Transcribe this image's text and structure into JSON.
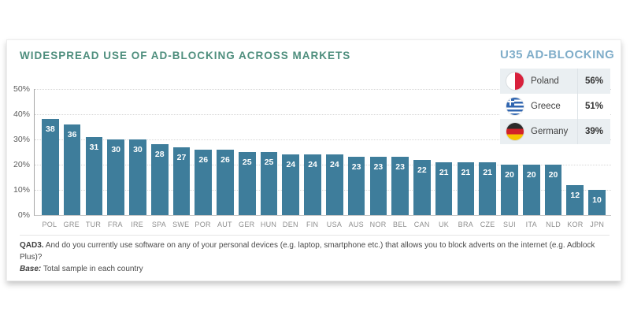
{
  "colors": {
    "bar": "#3E7D9B",
    "chart_title": "#4E8E7D",
    "panel_title": "#7FADC9",
    "legend_row_alt": "#EAEFF2"
  },
  "chart_data": {
    "type": "bar",
    "title": "WIDESPREAD USE OF AD-BLOCKING ACROSS MARKETS",
    "categories": [
      "POL",
      "GRE",
      "TUR",
      "FRA",
      "IRE",
      "SPA",
      "SWE",
      "POR",
      "AUT",
      "GER",
      "HUN",
      "DEN",
      "FIN",
      "USA",
      "AUS",
      "NOR",
      "BEL",
      "CAN",
      "UK",
      "BRA",
      "CZE",
      "SUI",
      "ITA",
      "NLD",
      "KOR",
      "JPN"
    ],
    "values": [
      38,
      36,
      31,
      30,
      30,
      28,
      27,
      26,
      26,
      25,
      25,
      24,
      24,
      24,
      23,
      23,
      23,
      22,
      21,
      21,
      21,
      20,
      20,
      20,
      12,
      10
    ],
    "ytick_labels": [
      "50%",
      "40%",
      "30%",
      "20%",
      "10%",
      "0%"
    ],
    "ylim": [
      0,
      50
    ],
    "xlabel": "",
    "ylabel": "",
    "grid": "dotted-horizontal",
    "legend_position": "top-right-overlay"
  },
  "panel": {
    "title": "U35 AD-BLOCKING",
    "rows": [
      {
        "country": "Poland",
        "value": "56%",
        "flag": "poland-flag",
        "flag_class": "flag-poland"
      },
      {
        "country": "Greece",
        "value": "51%",
        "flag": "greece-flag",
        "flag_class": "flag-greece"
      },
      {
        "country": "Germany",
        "value": "39%",
        "flag": "germany-flag",
        "flag_class": "flag-germany"
      }
    ]
  },
  "footnote": {
    "q_label": "QAD3.",
    "q_text": " And do you currently use software on any of your personal devices (e.g. laptop, smartphone etc.) that allows you to block adverts on the internet (e.g. Adblock Plus)?",
    "base_label": "Base:",
    "base_text": " Total sample in each country"
  }
}
